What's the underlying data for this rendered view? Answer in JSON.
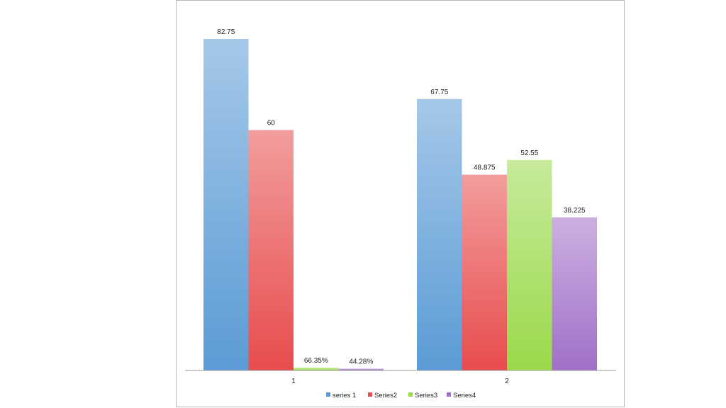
{
  "chart_data": {
    "type": "bar",
    "categories": [
      "1",
      "2"
    ],
    "series": [
      {
        "name": "series 1",
        "values": [
          82.75,
          67.75
        ],
        "labels": [
          "82.75",
          "67.75"
        ],
        "color": "#5b9bd5"
      },
      {
        "name": "Series2",
        "values": [
          60,
          48.875
        ],
        "labels": [
          "60",
          "48.875"
        ],
        "color": "#e84c4c"
      },
      {
        "name": "Series3",
        "values": [
          0.6635,
          52.55
        ],
        "labels": [
          "66.35%",
          "52.55"
        ],
        "color": "#9ad94a"
      },
      {
        "name": "Series4",
        "values": [
          0.4428,
          38.225
        ],
        "labels": [
          "44.28%",
          "38.225"
        ],
        "color": "#a070c8"
      }
    ],
    "ylim": [
      0,
      90
    ],
    "grid": false,
    "legend_position": "bottom"
  }
}
